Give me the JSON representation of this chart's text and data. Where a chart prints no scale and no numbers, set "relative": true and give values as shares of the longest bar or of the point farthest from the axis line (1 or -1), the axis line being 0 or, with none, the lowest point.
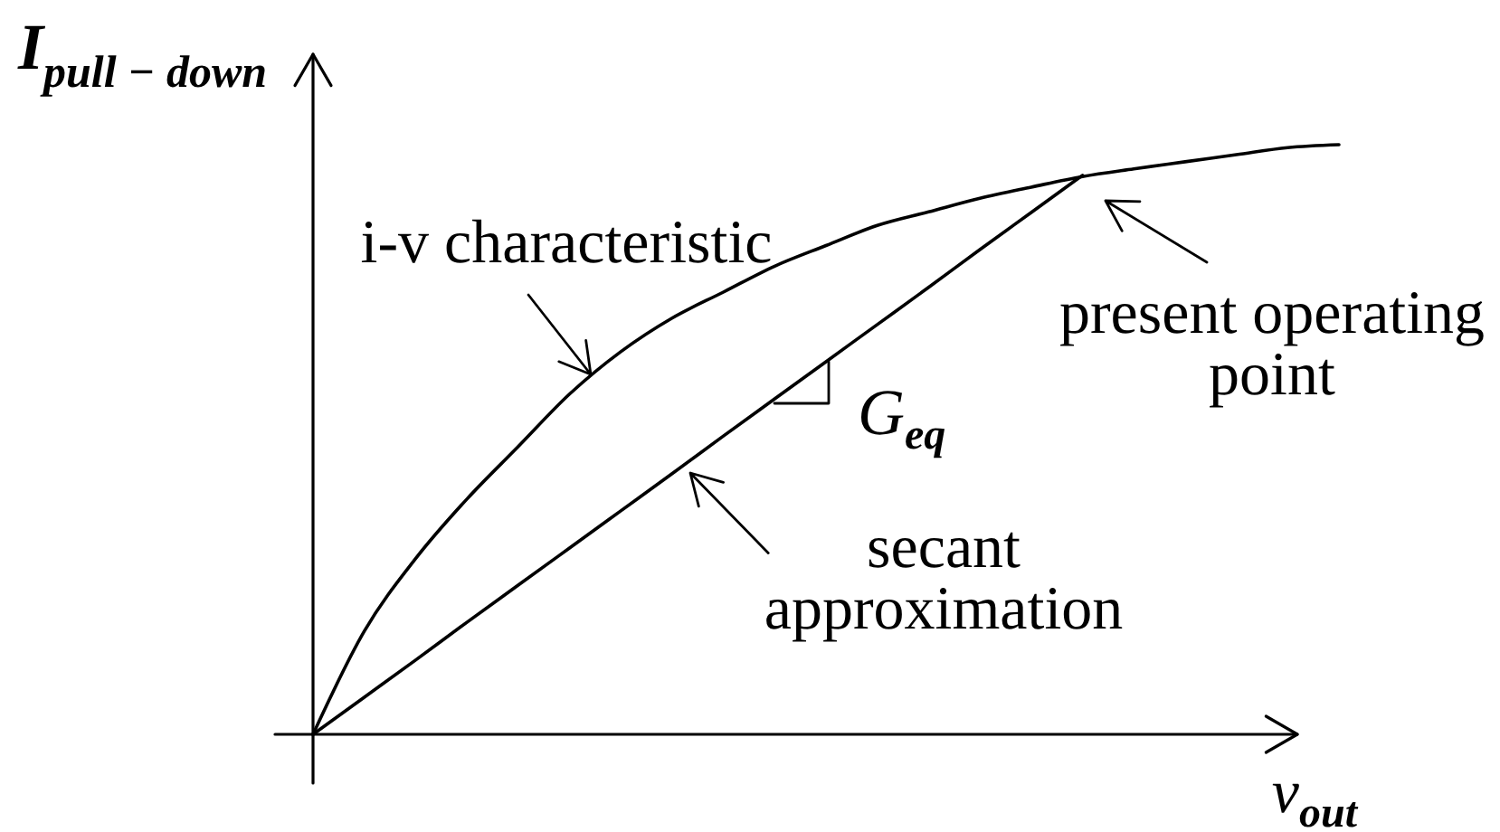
{
  "chart_data": {
    "type": "line",
    "relative": true,
    "xlabel": "v$_{out}$",
    "ylabel": "I$_{pull − down}$",
    "categories": [
      null,
      null,
      null,
      null,
      null,
      null,
      null,
      null,
      null,
      null,
      null,
      null,
      null,
      null,
      null,
      null,
      null,
      null,
      null,
      null,
      null
    ],
    "series": [
      {
        "color": "#000000",
        "values": [
          0,
          0.175,
          0.298,
          0.399,
          0.488,
          0.577,
          0.649,
          0.706,
          0.75,
          0.794,
          0.829,
          0.863,
          0.886,
          0.909,
          0.928,
          0.946,
          0.959,
          0.971,
          0.983,
          0.995,
          1.0
        ]
      },
      {
        "color": "#000000",
        "values": [
          0,
          0.063,
          0.126,
          0.19,
          0.253,
          0.316,
          0.379,
          0.442,
          0.506,
          0.569,
          0.632,
          0.695,
          0.758,
          0.822,
          0.885,
          0.948,
          null,
          null,
          null,
          null,
          null
        ]
      }
    ],
    "annotations": [
      "i-v characteristic",
      "present operating point",
      "secant approximation",
      "G$_{eq}$"
    ]
  }
}
